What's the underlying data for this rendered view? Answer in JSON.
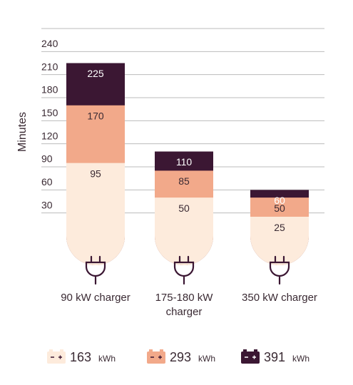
{
  "chart_data": {
    "type": "bar",
    "y_label": "Minutes",
    "categories": [
      "90 kW charger",
      "175-180 kW charger",
      "350 kW charger"
    ],
    "series": [
      {
        "name": "163",
        "unit": "kWh",
        "color": "#fdebdc",
        "values": [
          95,
          50,
          25
        ]
      },
      {
        "name": "293",
        "unit": "kWh",
        "color": "#f2a98a",
        "values": [
          170,
          85,
          50
        ]
      },
      {
        "name": "391",
        "unit": "kWh",
        "color": "#3b1733",
        "values": [
          225,
          110,
          60
        ]
      }
    ],
    "ylim": [
      0,
      270
    ],
    "yticks": [
      30,
      60,
      90,
      120,
      150,
      180,
      210,
      240
    ],
    "grid": true
  }
}
